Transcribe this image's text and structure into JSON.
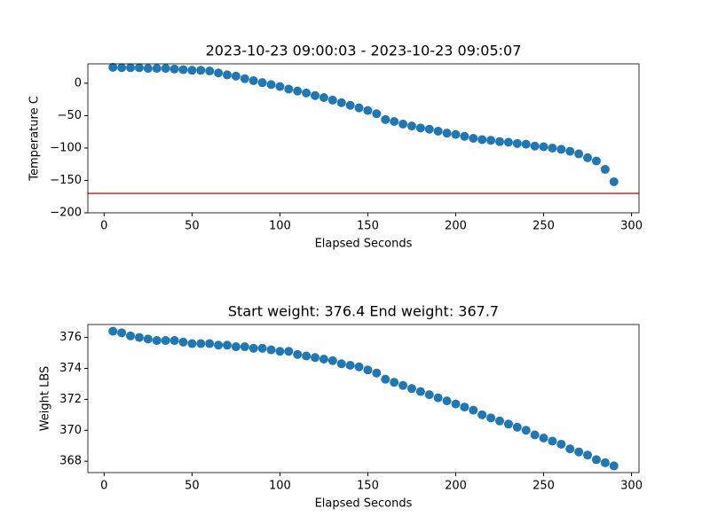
{
  "chart_data": [
    {
      "type": "scatter",
      "title": "2023-10-23 09:00:03 - 2023-10-23 09:05:07",
      "x_label": "Elapsed Seconds",
      "y_label": "Temperature C",
      "color": "#1f77b4",
      "x": [
        5,
        10,
        15,
        20,
        25,
        30,
        35,
        40,
        45,
        50,
        55,
        60,
        65,
        70,
        75,
        80,
        85,
        90,
        95,
        100,
        105,
        110,
        115,
        120,
        125,
        130,
        135,
        140,
        145,
        150,
        155,
        160,
        165,
        170,
        175,
        180,
        185,
        190,
        195,
        200,
        205,
        210,
        215,
        220,
        225,
        230,
        235,
        240,
        245,
        250,
        255,
        260,
        265,
        270,
        275,
        280,
        285,
        290
      ],
      "values": [
        24.6,
        24,
        24,
        24,
        23,
        23,
        23,
        22,
        21,
        20,
        20,
        19,
        16,
        13,
        11,
        7,
        4,
        1,
        -2,
        -5,
        -9,
        -12,
        -15,
        -19,
        -22,
        -26,
        -30,
        -34,
        -38,
        -42,
        -47,
        -56,
        -59,
        -63,
        -66,
        -69,
        -71,
        -74,
        -77,
        -79,
        -82,
        -85,
        -87,
        -88,
        -90,
        -91,
        -93,
        -94,
        -97,
        -98,
        -100,
        -102,
        -105,
        -109,
        -115,
        -120,
        -133,
        -152
      ],
      "hline": -170,
      "hline_color": "#d62728",
      "xlim": [
        -9.25,
        304.25
      ],
      "xticks": [
        0,
        50,
        100,
        150,
        200,
        250,
        300
      ],
      "ylim": [
        -200,
        30
      ],
      "yticks": [
        {
          "value": -200,
          "label": "−200"
        },
        {
          "value": -150,
          "label": "−150"
        },
        {
          "value": -100,
          "label": "−100"
        },
        {
          "value": -50,
          "label": "−50"
        },
        0
      ]
    },
    {
      "type": "scatter",
      "title": "Start weight: 376.4 End weight: 367.7",
      "x_label": "Elapsed Seconds",
      "y_label": "Weight LBS",
      "color": "#1f77b4",
      "x": [
        5,
        10,
        15,
        20,
        25,
        30,
        35,
        40,
        45,
        50,
        55,
        60,
        65,
        70,
        75,
        80,
        85,
        90,
        95,
        100,
        105,
        110,
        115,
        120,
        125,
        130,
        135,
        140,
        145,
        150,
        155,
        160,
        165,
        170,
        175,
        180,
        185,
        190,
        195,
        200,
        205,
        210,
        215,
        220,
        225,
        230,
        235,
        240,
        245,
        250,
        255,
        260,
        265,
        270,
        275,
        280,
        285,
        290
      ],
      "values": [
        376.4,
        376.3,
        376.1,
        376.0,
        375.9,
        375.8,
        375.8,
        375.8,
        375.7,
        375.6,
        375.6,
        375.6,
        375.5,
        375.5,
        375.4,
        375.4,
        375.3,
        375.3,
        375.2,
        375.1,
        375.1,
        374.9,
        374.8,
        374.7,
        374.6,
        374.5,
        374.3,
        374.2,
        374.1,
        373.9,
        373.7,
        373.3,
        373.1,
        372.9,
        372.7,
        372.5,
        372.3,
        372.1,
        371.9,
        371.7,
        371.5,
        371.3,
        371.0,
        370.8,
        370.6,
        370.4,
        370.2,
        370.0,
        369.7,
        369.5,
        369.3,
        369.1,
        368.8,
        368.6,
        368.4,
        368.1,
        367.9,
        367.7
      ],
      "xlim": [
        -9.25,
        304.25
      ],
      "xticks": [
        0,
        50,
        100,
        150,
        200,
        250,
        300
      ],
      "ylim": [
        367.265,
        376.835
      ],
      "yticks": [
        368,
        370,
        372,
        374,
        376
      ]
    }
  ]
}
